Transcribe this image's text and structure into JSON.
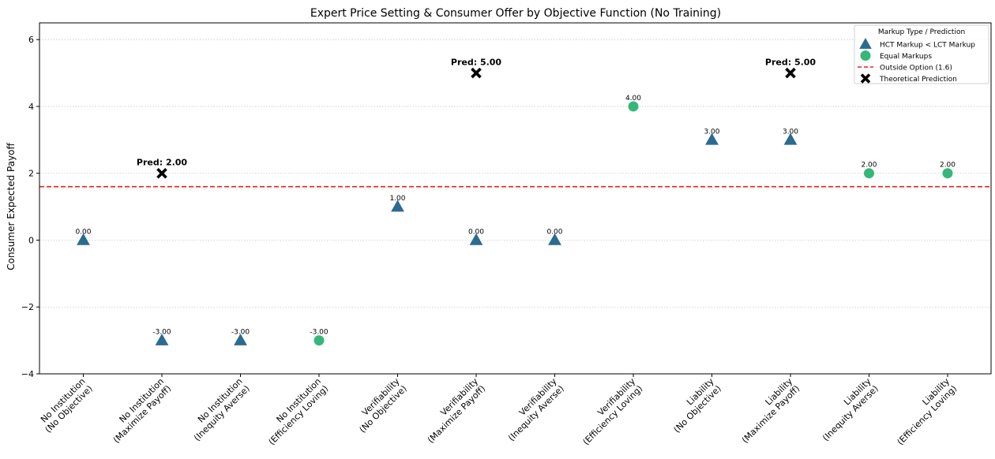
{
  "chart_data": {
    "type": "scatter",
    "title": "Expert Price Setting & Consumer Offer by Objective Function (No Training)",
    "xlabel": "",
    "ylabel": "Consumer Expected Payoff",
    "ylim": [
      -4,
      6.5
    ],
    "yticks": [
      -4,
      -2,
      0,
      2,
      4,
      6
    ],
    "ytick_labels": [
      "−4",
      "−2",
      "0",
      "2",
      "4",
      "6"
    ],
    "grid": "y-dotted",
    "categories": [
      [
        "No Institution",
        "(No Objective)"
      ],
      [
        "No Institution",
        "(Maximize Payoff)"
      ],
      [
        "No Institution",
        "(Inequity Averse)"
      ],
      [
        "No Institution",
        "(Efficiency Loving)"
      ],
      [
        "Verifiability",
        "(No Objective)"
      ],
      [
        "Verifiability",
        "(Maximize Payoff)"
      ],
      [
        "Verifiability",
        "(Inequity Averse)"
      ],
      [
        "Verifiability",
        "(Efficiency Loving)"
      ],
      [
        "Liability",
        "(No Objective)"
      ],
      [
        "Liability",
        "(Maximize Payoff)"
      ],
      [
        "Liability",
        "(Inequity Averse)"
      ],
      [
        "Liability",
        "(Efficiency Loving)"
      ]
    ],
    "series": [
      {
        "name": "HCT Markup < LCT Markup",
        "marker": "triangle",
        "color": "#2c6b8f",
        "points": [
          {
            "x": 0,
            "y": 0,
            "label": "0.00"
          },
          {
            "x": 1,
            "y": -3,
            "label": "-3.00"
          },
          {
            "x": 2,
            "y": -3,
            "label": "-3.00"
          },
          {
            "x": 4,
            "y": 1,
            "label": "1.00"
          },
          {
            "x": 5,
            "y": 0,
            "label": "0.00"
          },
          {
            "x": 6,
            "y": 0,
            "label": "0.00"
          },
          {
            "x": 8,
            "y": 3,
            "label": "3.00"
          },
          {
            "x": 9,
            "y": 3,
            "label": "3.00"
          }
        ]
      },
      {
        "name": "Equal Markups",
        "marker": "circle",
        "color": "#35b779",
        "points": [
          {
            "x": 3,
            "y": -3,
            "label": "-3.00"
          },
          {
            "x": 7,
            "y": 4,
            "label": "4.00"
          },
          {
            "x": 10,
            "y": 2,
            "label": "2.00"
          },
          {
            "x": 11,
            "y": 2,
            "label": "2.00"
          }
        ]
      }
    ],
    "outside_option": {
      "name": "Outside Option (1.6)",
      "value": 1.6,
      "color": "#e8221c"
    },
    "predictions": {
      "name": "Theoretical Prediction",
      "marker": "x",
      "color": "#000000",
      "points": [
        {
          "x": 1,
          "y": 2,
          "label": "Pred: 2.00"
        },
        {
          "x": 5,
          "y": 5,
          "label": "Pred: 5.00"
        },
        {
          "x": 9,
          "y": 5,
          "label": "Pred: 5.00"
        }
      ]
    },
    "legend": {
      "title": "Markup Type / Prediction",
      "placement": "top-right"
    }
  }
}
